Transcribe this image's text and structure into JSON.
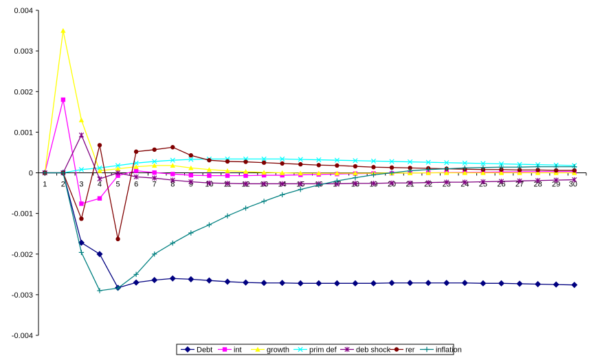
{
  "chart_data": {
    "type": "line",
    "title": "",
    "xlabel": "",
    "ylabel": "",
    "ylim": [
      -0.004,
      0.004
    ],
    "yticks": [
      "0.004",
      "0.003",
      "0.002",
      "0.001",
      "0",
      "-0.001",
      "-0.002",
      "-0.003",
      "-0.004"
    ],
    "ytick_values": [
      0.004,
      0.003,
      0.002,
      0.001,
      0,
      -0.001,
      -0.002,
      -0.003,
      -0.004
    ],
    "categories": [
      "1",
      "2",
      "3",
      "4",
      "5",
      "6",
      "7",
      "8",
      "9",
      "10",
      "11",
      "12",
      "13",
      "14",
      "15",
      "16",
      "17",
      "18",
      "19",
      "20",
      "21",
      "22",
      "23",
      "24",
      "25",
      "26",
      "27",
      "28",
      "29",
      "30"
    ],
    "grid": false,
    "legend_position": "bottom",
    "series": [
      {
        "name": "Debt",
        "color": "#000080",
        "marker": "diamond",
        "values": [
          0,
          0,
          -0.00172,
          -0.002,
          -0.00283,
          -0.0027,
          -0.00264,
          -0.0026,
          -0.00262,
          -0.00265,
          -0.00268,
          -0.0027,
          -0.00271,
          -0.00271,
          -0.00272,
          -0.00272,
          -0.00272,
          -0.00272,
          -0.00272,
          -0.00271,
          -0.00271,
          -0.00271,
          -0.00271,
          -0.00271,
          -0.00272,
          -0.00272,
          -0.00273,
          -0.00274,
          -0.00275,
          -0.00276
        ]
      },
      {
        "name": "int",
        "color": "#ff00ff",
        "marker": "square",
        "values": [
          0,
          0.0018,
          -0.00076,
          -0.00063,
          -7e-05,
          5e-05,
          5e-06,
          -3e-05,
          -6e-05,
          -7e-05,
          -7e-05,
          -7e-05,
          -6e-05,
          -6e-05,
          -5e-05,
          -4e-05,
          -3e-05,
          -2e-05,
          -1.5e-05,
          -1e-05,
          -5e-06,
          0,
          5e-06,
          1e-05,
          1.5e-05,
          2e-05,
          2.5e-05,
          3e-05,
          3e-05,
          3e-05
        ]
      },
      {
        "name": "growth",
        "color": "#ffff00",
        "marker": "triangle",
        "values": [
          0,
          0.0035,
          0.0013,
          5e-05,
          0.0001,
          0.00015,
          0.00018,
          0.00018,
          0.00012,
          8e-05,
          5e-05,
          3e-05,
          1e-05,
          0,
          -1e-05,
          -1e-05,
          -1e-05,
          -1e-05,
          -1e-05,
          -5e-06,
          -5e-06,
          0,
          0,
          0,
          0,
          0,
          0,
          0,
          0,
          0
        ]
      },
      {
        "name": "prim def",
        "color": "#00ffff",
        "marker": "x",
        "values": [
          0,
          0,
          8e-05,
          0.00012,
          0.00018,
          0.00024,
          0.00028,
          0.00031,
          0.00033,
          0.00034,
          0.00034,
          0.00034,
          0.00034,
          0.00034,
          0.00033,
          0.00032,
          0.00031,
          0.0003,
          0.00029,
          0.00028,
          0.00027,
          0.00026,
          0.00025,
          0.00024,
          0.00023,
          0.00022,
          0.00021,
          0.0002,
          0.00019,
          0.00018
        ]
      },
      {
        "name": "deb shock",
        "color": "#800080",
        "marker": "star",
        "values": [
          0,
          0,
          0.00093,
          -0.00015,
          0,
          -0.0001,
          -0.00013,
          -0.00018,
          -0.00022,
          -0.00025,
          -0.00026,
          -0.00027,
          -0.00027,
          -0.00027,
          -0.00027,
          -0.00027,
          -0.00027,
          -0.00026,
          -0.00026,
          -0.00025,
          -0.00025,
          -0.00024,
          -0.00023,
          -0.00023,
          -0.00022,
          -0.00021,
          -0.0002,
          -0.00019,
          -0.00018,
          -0.00017
        ]
      },
      {
        "name": "rer",
        "color": "#800000",
        "marker": "circle",
        "values": [
          0,
          0,
          -0.00113,
          0.00068,
          -0.00163,
          0.00052,
          0.00057,
          0.00063,
          0.00043,
          0.00031,
          0.00028,
          0.00027,
          0.00025,
          0.00023,
          0.00021,
          0.00019,
          0.00018,
          0.00016,
          0.00014,
          0.00013,
          0.00012,
          0.00011,
          0.0001,
          9e-05,
          8e-05,
          8e-05,
          7e-05,
          7e-05,
          6e-05,
          6e-05
        ]
      },
      {
        "name": "inflation",
        "color": "#008080",
        "marker": "plus",
        "values": [
          0,
          0,
          -0.00196,
          -0.0029,
          -0.00284,
          -0.0025,
          -0.002,
          -0.00173,
          -0.00148,
          -0.00128,
          -0.00106,
          -0.00087,
          -0.0007,
          -0.00054,
          -0.00041,
          -0.0003,
          -0.0002,
          -0.00012,
          -5e-05,
          0,
          5e-05,
          8e-05,
          0.0001,
          0.00012,
          0.00013,
          0.00014,
          0.00014,
          0.00015,
          0.00015,
          0.00015
        ]
      }
    ]
  }
}
